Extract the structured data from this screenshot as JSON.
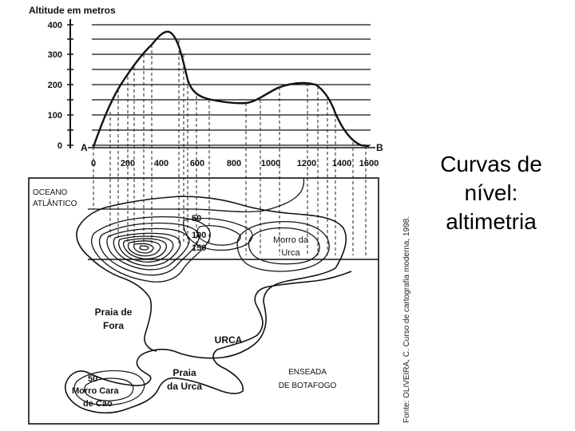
{
  "slide": {
    "title_lines": [
      "Curvas de",
      "nível:",
      "altimetria"
    ]
  },
  "profile": {
    "y_axis_title": "Altitude em metros",
    "y_ticks": [
      "400",
      "300",
      "200",
      "100",
      "0"
    ],
    "x_ticks": [
      "0",
      "200",
      "400",
      "600",
      "800",
      "1000",
      "1200",
      "1400",
      "1600"
    ],
    "point_a": "A",
    "point_b": "B",
    "source_credit": "Fonte: OLIVEIRA, C. Curso de cartografia moderna, 1998."
  },
  "map": {
    "ocean_line1": "OCEANO",
    "ocean_line2": "ATLÂNTICO",
    "contour_50": "50",
    "contour_100": "100",
    "contour_150": "150",
    "morro_urca_line1": "Morro da",
    "morro_urca_line2": "Urca",
    "praia_fora_line1": "Praia de",
    "praia_fora_line2": "Fora",
    "urca": "URCA",
    "praia_urca_line1": "Praia",
    "praia_urca_line2": "da Urca",
    "enseada_line1": "ENSEADA",
    "enseada_line2": "DE BOTAFOGO",
    "cara_cao_contour": "50",
    "cara_cao_line1": "Morro Cara",
    "cara_cao_line2": "de Cão"
  }
}
